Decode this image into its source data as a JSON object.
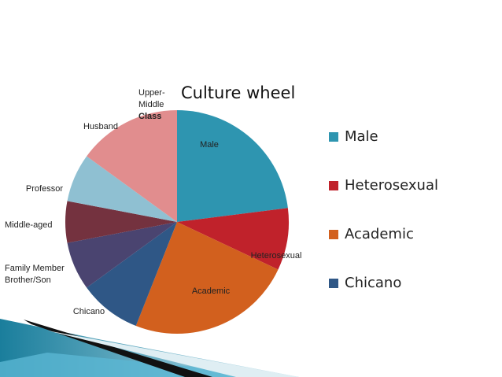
{
  "chart_data": {
    "type": "pie",
    "title": "Culture wheel",
    "categories": [
      "Male",
      "Heterosexual",
      "Academic",
      "Chicano",
      "Family Member Brother/Son",
      "Middle-aged",
      "Professor",
      "Husband",
      "Upper- Middle Class"
    ],
    "values": [
      23,
      9,
      24,
      9,
      7,
      6,
      7,
      15,
      0
    ],
    "colors": [
      "#2e95b0",
      "#c0222b",
      "#d2601e",
      "#2f5786",
      "#4a4470",
      "#74323f",
      "#8fc0d2",
      "#e18d8e",
      "#e18d8e"
    ],
    "legend_items": [
      0,
      1,
      2,
      3
    ],
    "legend": "right"
  }
}
